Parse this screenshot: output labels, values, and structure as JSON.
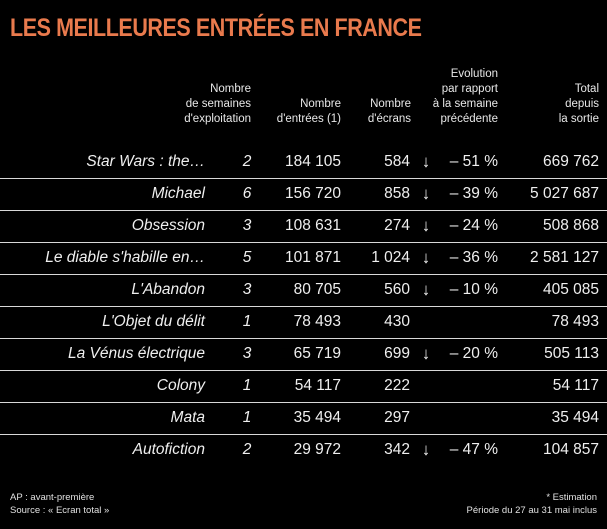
{
  "title": "LES MEILLEURES ENTRÉES EN FRANCE",
  "headers": {
    "weeks": "Nombre\nde semaines\nd'exploitation",
    "entries": "Nombre\nd'entrées (1)",
    "screens": "Nombre\nd'écrans",
    "evolution": "Evolution\npar rapport\nà la semaine\nprécédente",
    "total": "Total\ndepuis\nla sortie"
  },
  "rows": [
    {
      "title": "Star Wars : the…",
      "weeks": "2",
      "entries": "184 105",
      "screens": "584",
      "arrow": "down-arrow-icon",
      "evol": "– 51 %",
      "total": "669 762"
    },
    {
      "title": "Michael",
      "weeks": "6",
      "entries": "156 720",
      "screens": "858",
      "arrow": "down-arrow-icon",
      "evol": "– 39 %",
      "total": "5 027 687"
    },
    {
      "title": "Obsession",
      "weeks": "3",
      "entries": "108 631",
      "screens": "274",
      "arrow": "down-arrow-icon",
      "evol": "– 24 %",
      "total": "508 868"
    },
    {
      "title": "Le diable s'habille en…",
      "weeks": "5",
      "entries": "101 871",
      "screens": "1 024",
      "arrow": "down-arrow-icon",
      "evol": "– 36 %",
      "total": "2 581 127"
    },
    {
      "title": "L'Abandon",
      "weeks": "3",
      "entries": "80 705",
      "screens": "560",
      "arrow": "down-arrow-icon",
      "evol": "– 10 %",
      "total": "405 085"
    },
    {
      "title": "L'Objet du délit",
      "weeks": "1",
      "entries": "78 493",
      "screens": "430",
      "arrow": "",
      "evol": "",
      "total": "78 493"
    },
    {
      "title": "La Vénus électrique",
      "weeks": "3",
      "entries": "65 719",
      "screens": "699",
      "arrow": "down-arrow-icon",
      "evol": "– 20 %",
      "total": "505 113"
    },
    {
      "title": "Colony",
      "weeks": "1",
      "entries": "54 117",
      "screens": "222",
      "arrow": "",
      "evol": "",
      "total": "54 117"
    },
    {
      "title": "Mata",
      "weeks": "1",
      "entries": "35 494",
      "screens": "297",
      "arrow": "",
      "evol": "",
      "total": "35 494"
    },
    {
      "title": "Autofiction",
      "weeks": "2",
      "entries": "29 972",
      "screens": "342",
      "arrow": "down-arrow-icon",
      "evol": "– 47 %",
      "total": "104 857"
    }
  ],
  "footer": {
    "left": "AP : avant-première\nSource : « Ecran total »",
    "right": "* Estimation\nPériode du 27 au 31 mai inclus"
  },
  "colors": {
    "title": "#e97a4d",
    "background": "#000000"
  }
}
